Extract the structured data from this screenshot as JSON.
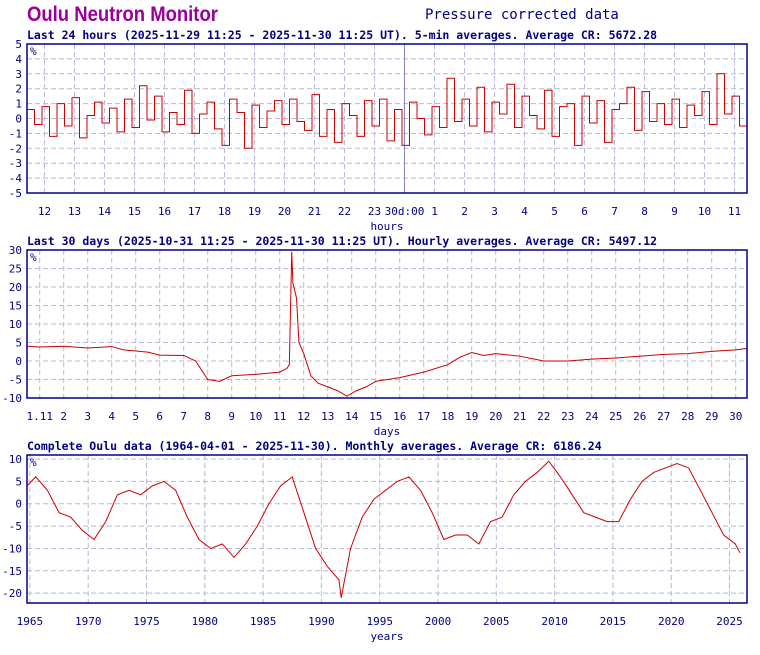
{
  "header": {
    "title": "Oulu Neutron Monitor",
    "subtitle": "Pressure corrected data"
  },
  "chart_data": [
    {
      "type": "line",
      "title": "Last 24 hours (2025-11-29 11:25 - 2025-11-30 11:25 UT). 5-min averages. Average CR: 5672.28",
      "xlabel": "hours",
      "ylabel": "%",
      "ylim": [
        -5,
        5
      ],
      "xlim": [
        0,
        24
      ],
      "yticks": [
        "5",
        "4",
        "3",
        "2",
        "1",
        "0",
        "-1",
        "-2",
        "-3",
        "-4",
        "-5"
      ],
      "xticks": [
        "12",
        "13",
        "14",
        "15",
        "16",
        "17",
        "18",
        "19",
        "20",
        "21",
        "22",
        "23",
        "30d:00",
        "1",
        "2",
        "3",
        "4",
        "5",
        "6",
        "7",
        "8",
        "9",
        "10",
        "11"
      ],
      "x_unit": "hours since 2025-11-29 11:25",
      "values": [
        0.6,
        -0.4,
        0.8,
        -1.2,
        1.0,
        -0.5,
        1.4,
        -1.3,
        0.2,
        1.1,
        -0.3,
        0.7,
        -0.9,
        1.3,
        -0.6,
        2.2,
        -0.1,
        1.5,
        -0.9,
        0.4,
        -0.4,
        1.9,
        -1.0,
        0.3,
        1.1,
        -0.7,
        -1.8,
        1.3,
        0.4,
        -2.0,
        0.9,
        -0.6,
        0.5,
        1.2,
        -0.4,
        1.3,
        -0.2,
        -0.8,
        1.6,
        -1.2,
        0.6,
        -1.6,
        1.0,
        0.2,
        -1.2,
        1.2,
        -0.5,
        1.3,
        -1.5,
        0.6,
        -1.8,
        1.1,
        0.0,
        -1.1,
        0.8,
        -0.6,
        2.7,
        -0.2,
        1.3,
        -0.5,
        2.1,
        -0.9,
        1.1,
        0.3,
        2.3,
        -0.6,
        1.5,
        0.2,
        -0.7,
        1.9,
        -1.2,
        0.8,
        1.0,
        -1.8,
        1.5,
        -0.3,
        1.2,
        -1.6,
        0.6,
        1.0,
        2.1,
        -0.8,
        1.8,
        -0.2,
        1.0,
        -0.4,
        1.3,
        -0.6,
        0.9,
        0.2,
        1.8,
        -0.4,
        3.0,
        0.3,
        1.5,
        -0.5
      ]
    },
    {
      "type": "line",
      "title": "Last 30 days (2025-10-31 11:25 - 2025-11-30 11:25 UT). Hourly averages. Average CR: 5497.12",
      "xlabel": "days",
      "ylabel": "%",
      "ylim": [
        -10,
        30
      ],
      "xlim": [
        -0.53,
        29.47
      ],
      "yticks": [
        "30",
        "25",
        "20",
        "15",
        "10",
        "5",
        "0",
        "-5",
        "-10"
      ],
      "xticks": [
        "1.11",
        "2",
        "3",
        "4",
        "5",
        "6",
        "7",
        "8",
        "9",
        "10",
        "11",
        "12",
        "13",
        "14",
        "15",
        "16",
        "17",
        "18",
        "19",
        "20",
        "21",
        "22",
        "23",
        "24",
        "25",
        "26",
        "27",
        "28",
        "29",
        "30"
      ],
      "x_unit": "days since 2025-11-01 00:00",
      "points": [
        [
          -0.53,
          4
        ],
        [
          0,
          3.8
        ],
        [
          1,
          4
        ],
        [
          2,
          3.5
        ],
        [
          3,
          3.9
        ],
        [
          3.5,
          3
        ],
        [
          4,
          2.7
        ],
        [
          4.5,
          2.4
        ],
        [
          5,
          1.6
        ],
        [
          6,
          1.5
        ],
        [
          6.5,
          0
        ],
        [
          7,
          -5
        ],
        [
          7.5,
          -5.5
        ],
        [
          8,
          -4
        ],
        [
          9,
          -3.6
        ],
        [
          10,
          -3
        ],
        [
          10.3,
          -2
        ],
        [
          10.4,
          -1
        ],
        [
          10.5,
          29.5
        ],
        [
          10.55,
          21
        ],
        [
          10.7,
          17
        ],
        [
          10.8,
          5
        ],
        [
          11,
          2
        ],
        [
          11.3,
          -4
        ],
        [
          11.6,
          -6
        ],
        [
          12,
          -7
        ],
        [
          12.4,
          -8
        ],
        [
          12.8,
          -9.5
        ],
        [
          13.2,
          -8
        ],
        [
          13.6,
          -7
        ],
        [
          14,
          -5.5
        ],
        [
          15,
          -4.5
        ],
        [
          16,
          -3
        ],
        [
          17,
          -1
        ],
        [
          17.5,
          1
        ],
        [
          18,
          2.3
        ],
        [
          18.5,
          1.5
        ],
        [
          19,
          2
        ],
        [
          20,
          1.3
        ],
        [
          21,
          0
        ],
        [
          22,
          0
        ],
        [
          23,
          0.5
        ],
        [
          24,
          0.8
        ],
        [
          25,
          1.3
        ],
        [
          26,
          1.8
        ],
        [
          27,
          2
        ],
        [
          28,
          2.6
        ],
        [
          29,
          3
        ],
        [
          29.47,
          3.4
        ]
      ]
    },
    {
      "type": "line",
      "title": "Complete Oulu data (1964-04-01 - 2025-11-30). Monthly averages. Average CR: 6186.24",
      "xlabel": "years",
      "ylabel": "%",
      "ylim": [
        -22.2,
        10.9
      ],
      "xlim": [
        1964.75,
        2026.5
      ],
      "yticks": [
        "10",
        "5",
        "0",
        "-5",
        "-10",
        "-15",
        "-20"
      ],
      "xticks": [
        "1965",
        "1970",
        "1975",
        "1980",
        "1985",
        "1990",
        "1995",
        "2000",
        "2005",
        "2010",
        "2015",
        "2020",
        "2025"
      ],
      "points": [
        [
          1964.75,
          4
        ],
        [
          1965.5,
          6
        ],
        [
          1966.5,
          3
        ],
        [
          1967.5,
          -2
        ],
        [
          1968.5,
          -3
        ],
        [
          1969.5,
          -6
        ],
        [
          1970.5,
          -8
        ],
        [
          1971.5,
          -4
        ],
        [
          1972.5,
          2
        ],
        [
          1973.5,
          3
        ],
        [
          1974.5,
          2
        ],
        [
          1975.5,
          4
        ],
        [
          1976.5,
          5
        ],
        [
          1977.5,
          3
        ],
        [
          1978.5,
          -3
        ],
        [
          1979.5,
          -8
        ],
        [
          1980.5,
          -10
        ],
        [
          1981.5,
          -9
        ],
        [
          1982.5,
          -12
        ],
        [
          1983.5,
          -9
        ],
        [
          1984.5,
          -5
        ],
        [
          1985.5,
          0
        ],
        [
          1986.5,
          4
        ],
        [
          1987.5,
          6
        ],
        [
          1988.5,
          -2
        ],
        [
          1989.5,
          -10
        ],
        [
          1990.5,
          -14
        ],
        [
          1991.5,
          -17
        ],
        [
          1991.7,
          -21
        ],
        [
          1992.5,
          -10
        ],
        [
          1993.5,
          -3
        ],
        [
          1994.5,
          1
        ],
        [
          1995.5,
          3
        ],
        [
          1996.5,
          5
        ],
        [
          1997.5,
          6
        ],
        [
          1998.5,
          3
        ],
        [
          1999.5,
          -2
        ],
        [
          2000.5,
          -8
        ],
        [
          2001.5,
          -7
        ],
        [
          2002.5,
          -7
        ],
        [
          2003.5,
          -9
        ],
        [
          2004.5,
          -4
        ],
        [
          2005.5,
          -3
        ],
        [
          2006.5,
          2
        ],
        [
          2007.5,
          5
        ],
        [
          2008.5,
          7
        ],
        [
          2009.5,
          9.5
        ],
        [
          2010.5,
          6
        ],
        [
          2011.5,
          2
        ],
        [
          2012.5,
          -2
        ],
        [
          2013.5,
          -3
        ],
        [
          2014.5,
          -4
        ],
        [
          2015.5,
          -4
        ],
        [
          2016.5,
          1
        ],
        [
          2017.5,
          5
        ],
        [
          2018.5,
          7
        ],
        [
          2019.5,
          8
        ],
        [
          2020.5,
          9
        ],
        [
          2021.5,
          8
        ],
        [
          2022.5,
          3
        ],
        [
          2023.5,
          -2
        ],
        [
          2024.5,
          -7
        ],
        [
          2025.5,
          -9
        ],
        [
          2025.9,
          -11
        ]
      ]
    }
  ]
}
